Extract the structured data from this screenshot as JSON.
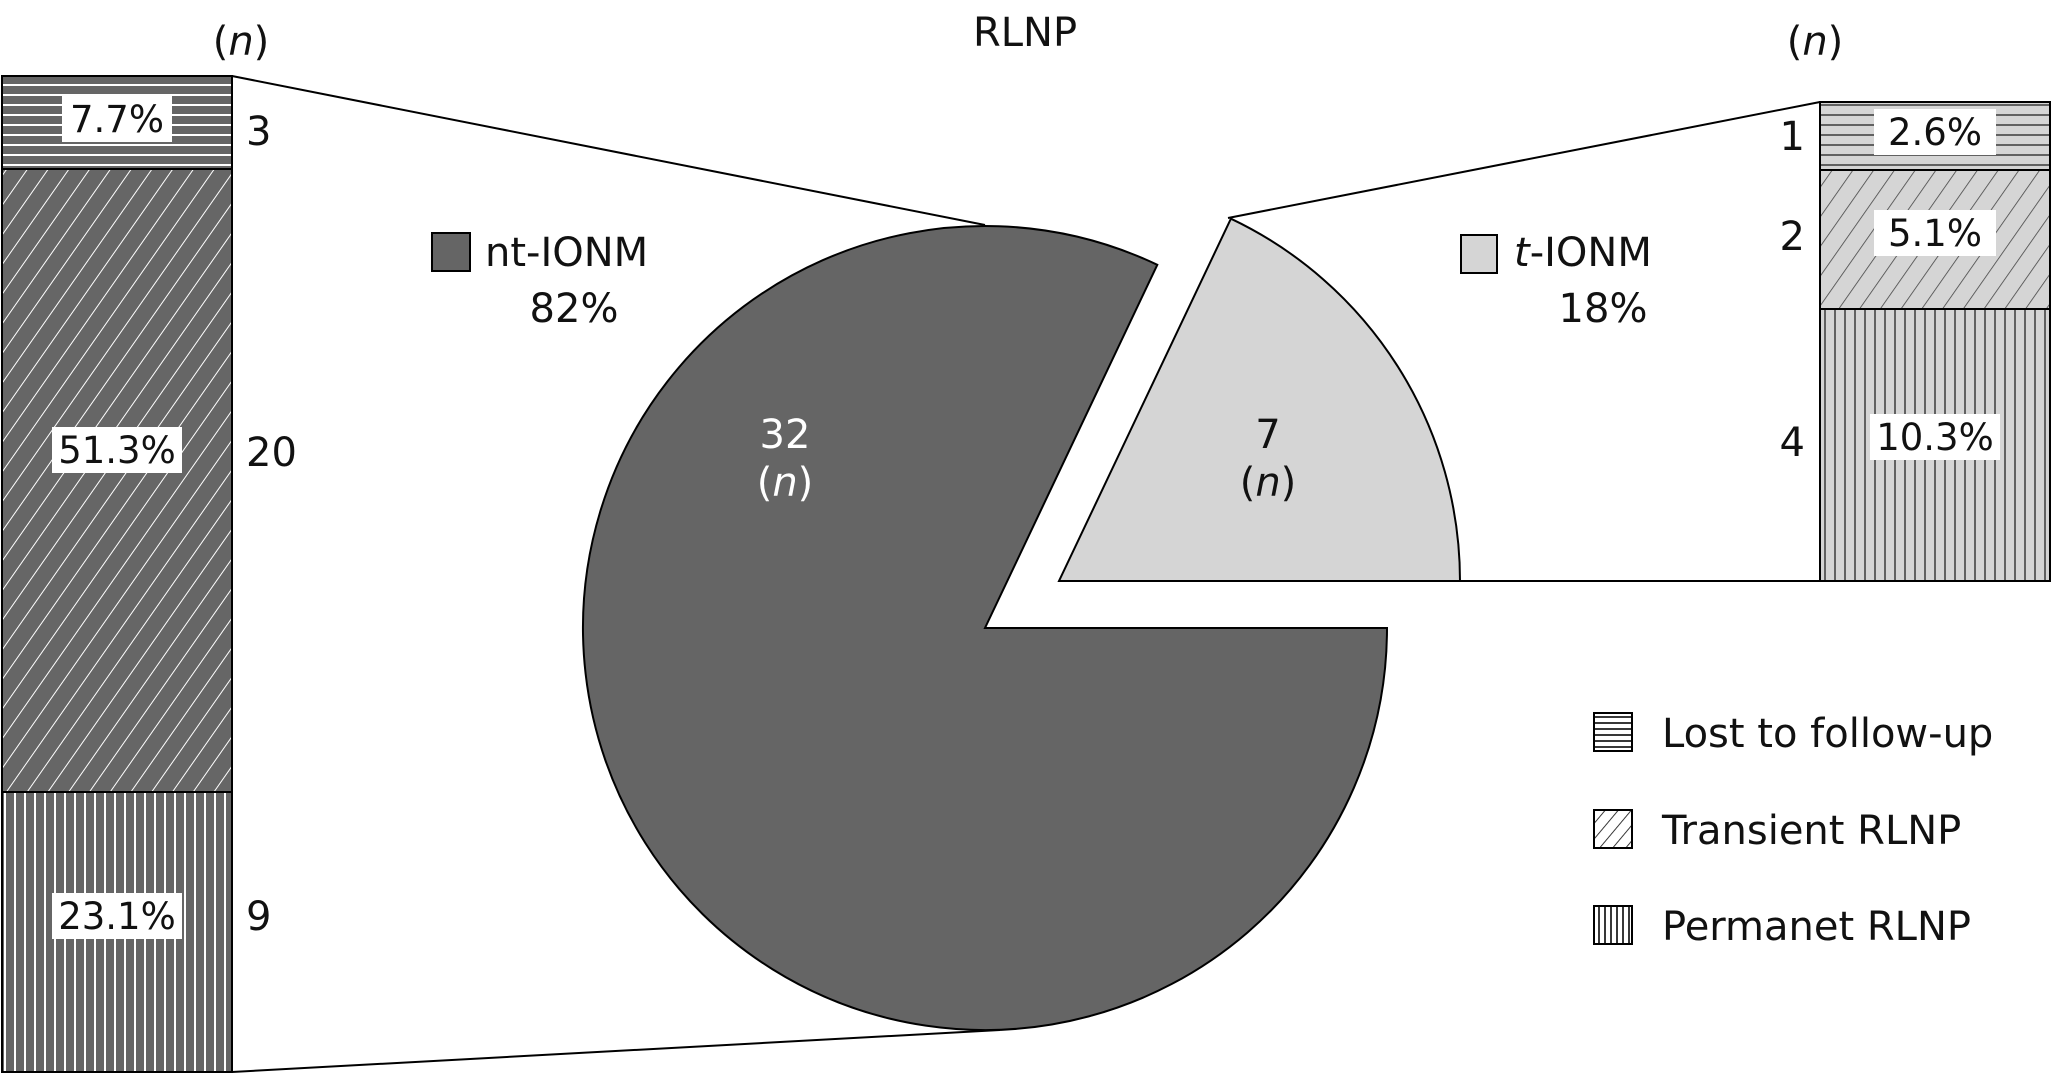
{
  "chart_data": {
    "type": "pie",
    "title": "RLNP",
    "pie": {
      "slices": [
        {
          "label": "nt-IONM",
          "percent": "82%",
          "value": 32,
          "count_label": "32",
          "unit_label": "n",
          "color": "#656565"
        },
        {
          "label": "t-IONM",
          "percent": "18%",
          "value": 7,
          "count_label": "7",
          "unit_label": "n",
          "color": "#d5d5d5"
        }
      ]
    },
    "bars": [
      {
        "header": "n",
        "source": "nt-IONM",
        "segments": [
          {
            "category": "Lost to follow-up",
            "percent": "7.7%",
            "n": 3,
            "count_label": "3"
          },
          {
            "category": "Transient RLNP",
            "percent": "51.3%",
            "n": 20,
            "count_label": "20"
          },
          {
            "category": "Permanet RLNP",
            "percent": "23.1%",
            "n": 9,
            "count_label": "9"
          }
        ]
      },
      {
        "header": "n",
        "source": "t-IONM",
        "segments": [
          {
            "category": "Lost to follow-up",
            "percent": "2.6%",
            "n": 1,
            "count_label": "1"
          },
          {
            "category": "Transient RLNP",
            "percent": "5.1%",
            "n": 2,
            "count_label": "2"
          },
          {
            "category": "Permanet RLNP",
            "percent": "10.3%",
            "n": 4,
            "count_label": "4"
          }
        ]
      }
    ],
    "legend": {
      "placement": "bottom-right",
      "items": [
        {
          "label": "Lost to follow-up",
          "pattern": "horizontal-lines"
        },
        {
          "label": "Transient RLNP",
          "pattern": "diagonal-lines"
        },
        {
          "label": "Permanet RLNP",
          "pattern": "vertical-lines"
        }
      ]
    }
  }
}
